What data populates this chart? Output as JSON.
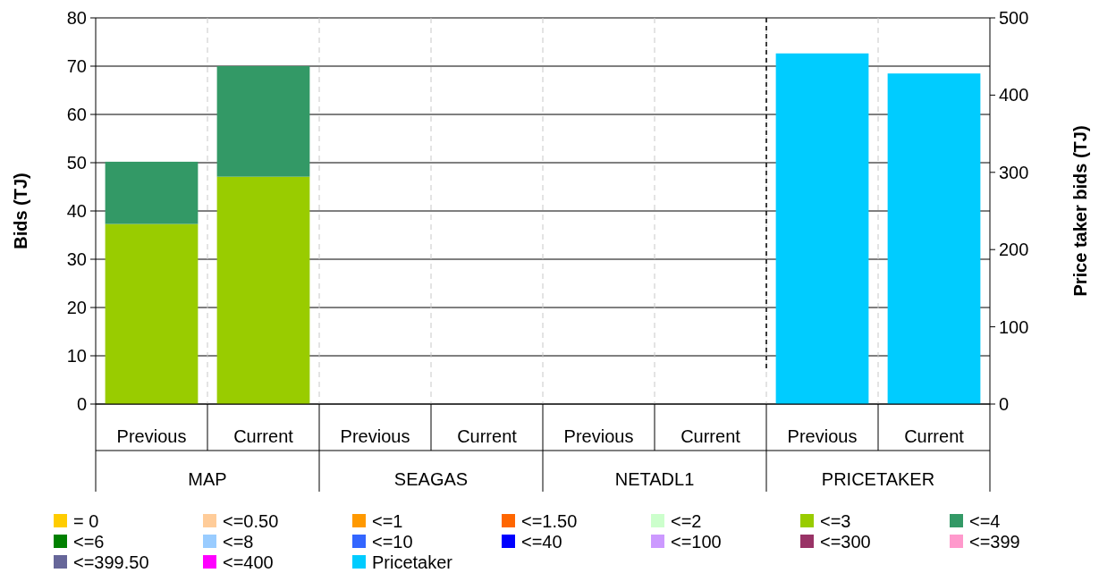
{
  "chart_data": {
    "type": "bar",
    "stacked": true,
    "ylabel": "Bids (TJ)",
    "y2label": "Price taker bids (TJ)",
    "categories": [
      "Previous",
      "Current",
      "Previous",
      "Current",
      "Previous",
      "Current",
      "Previous",
      "Current"
    ],
    "annotations": [
      "MAP",
      "SEAGAS",
      "NETADL1",
      "PRICETAKER"
    ],
    "ylim": [
      0,
      80
    ],
    "yticks": [
      0,
      10,
      20,
      30,
      40,
      50,
      60,
      70,
      80
    ],
    "y2lim": [
      0,
      500
    ],
    "y2ticks": [
      0,
      100,
      200,
      300,
      400,
      500
    ],
    "grid": "y",
    "legend": "bottom",
    "series": [
      {
        "name": "= 0",
        "color": "#ffcc00",
        "values": [
          null,
          null,
          null,
          null,
          null,
          null,
          null,
          null
        ]
      },
      {
        "name": "<=0.50",
        "color": "#ffcc99",
        "values": [
          null,
          null,
          null,
          null,
          null,
          null,
          null,
          null
        ]
      },
      {
        "name": "<=1",
        "color": "#ff9900",
        "values": [
          null,
          null,
          null,
          null,
          null,
          null,
          null,
          null
        ]
      },
      {
        "name": "<=1.50",
        "color": "#ff6600",
        "values": [
          null,
          null,
          null,
          null,
          null,
          null,
          null,
          null
        ]
      },
      {
        "name": "<=2",
        "color": "#ccffcc",
        "values": [
          null,
          null,
          null,
          null,
          null,
          null,
          null,
          null
        ]
      },
      {
        "name": "<=3",
        "color": "#99cc00",
        "values": [
          37.3,
          47.1,
          null,
          null,
          null,
          null,
          null,
          null
        ]
      },
      {
        "name": "<=4",
        "color": "#339966",
        "values": [
          12.9,
          22.9,
          null,
          null,
          null,
          null,
          null,
          null
        ]
      },
      {
        "name": "<=6",
        "color": "#008000",
        "values": [
          null,
          null,
          null,
          null,
          null,
          null,
          null,
          null
        ]
      },
      {
        "name": "<=8",
        "color": "#99ccff",
        "values": [
          null,
          null,
          null,
          null,
          null,
          null,
          null,
          null
        ]
      },
      {
        "name": "<=10",
        "color": "#3366ff",
        "values": [
          null,
          null,
          null,
          null,
          null,
          null,
          null,
          null
        ]
      },
      {
        "name": "<=40",
        "color": "#0000ff",
        "values": [
          null,
          null,
          null,
          null,
          null,
          null,
          null,
          null
        ]
      },
      {
        "name": "<=100",
        "color": "#cc99ff",
        "values": [
          null,
          null,
          null,
          null,
          null,
          null,
          null,
          null
        ]
      },
      {
        "name": "<=300",
        "color": "#993366",
        "values": [
          null,
          null,
          null,
          null,
          null,
          null,
          null,
          null
        ]
      },
      {
        "name": "<=399",
        "color": "#ff99cc",
        "values": [
          null,
          null,
          null,
          null,
          null,
          null,
          null,
          null
        ]
      },
      {
        "name": "<=399.50",
        "color": "#666699",
        "values": [
          null,
          null,
          null,
          null,
          null,
          null,
          null,
          null
        ]
      },
      {
        "name": "<=400",
        "color": "#ff00ff",
        "values": [
          null,
          null,
          null,
          null,
          null,
          null,
          null,
          null
        ]
      },
      {
        "name": "Pricetaker",
        "color": "#00ccff",
        "axis": "y2",
        "values": [
          null,
          null,
          null,
          null,
          null,
          null,
          454,
          428
        ]
      }
    ]
  }
}
